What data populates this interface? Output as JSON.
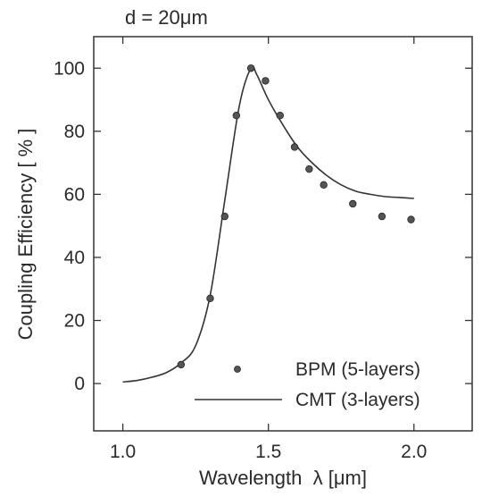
{
  "chart_data": {
    "type": "scatter",
    "title": "d = 20μm",
    "xlabel": "Wavelength  λ [μm]",
    "ylabel": "Coupling Efficiency [ % ]",
    "xlim": [
      0.9,
      2.2
    ],
    "ylim": [
      -15,
      110
    ],
    "xticks": [
      1.0,
      1.5,
      2.0
    ],
    "xtick_labels": [
      "1.0",
      "1.5",
      "2.0"
    ],
    "yticks": [
      0,
      20,
      40,
      60,
      80,
      100
    ],
    "ytick_labels": [
      "0",
      "20",
      "40",
      "60",
      "80",
      "100"
    ],
    "grid": false,
    "legend_position": "bottom-right",
    "series": [
      {
        "name": "BPM (5-layers)",
        "style": "points",
        "color": "#555555",
        "x": [
          1.2,
          1.3,
          1.35,
          1.39,
          1.44,
          1.49,
          1.54,
          1.59,
          1.64,
          1.69,
          1.79,
          1.89,
          1.99
        ],
        "y": [
          6,
          27,
          53,
          85,
          100,
          96,
          85,
          75,
          68,
          63,
          57,
          53,
          52
        ]
      },
      {
        "name": "CMT (3-layers)",
        "style": "line",
        "color": "#333333",
        "x": [
          1.0,
          1.05,
          1.1,
          1.15,
          1.2,
          1.25,
          1.3,
          1.35,
          1.4,
          1.44,
          1.46,
          1.5,
          1.55,
          1.6,
          1.65,
          1.7,
          1.75,
          1.8,
          1.85,
          1.9,
          1.95,
          2.0
        ],
        "y": [
          0.5,
          1,
          2,
          3.5,
          6.5,
          12,
          28,
          58,
          88,
          100,
          98,
          90,
          82,
          75,
          70,
          66,
          63,
          61,
          60,
          59.3,
          59,
          58.7
        ]
      }
    ]
  }
}
